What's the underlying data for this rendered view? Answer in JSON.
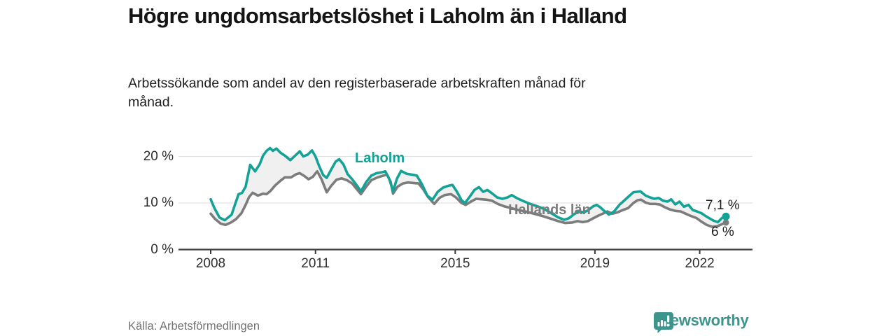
{
  "footer": {
    "source": "Källa: Arbetsförmedlingen",
    "brand": "Newsworthy",
    "brand_color": "#3c948d"
  },
  "chart_data": {
    "type": "line",
    "title": "Högre ungdomsarbetslöshet i Laholm än i Halland",
    "subtitle": "Arbetssökande som andel av den registerbaserade arbetskraften månad för månad.",
    "grid": true,
    "legend": "inline-labels",
    "colors": {
      "grid": "#e2e2e2",
      "axis": "#3d3d3d",
      "fill_between": "#f0f0f0",
      "tick_text": "#2e2e2e"
    },
    "x_axis": {
      "range": [
        2007.9,
        2023.1
      ],
      "ticks": [
        2008,
        2011,
        2015,
        2019,
        2022
      ],
      "labels": [
        "2008",
        "2011",
        "2015",
        "2019",
        "2022"
      ]
    },
    "y_axis": {
      "unit": "%",
      "range": [
        0,
        22
      ],
      "ticks": [
        0,
        10,
        20
      ],
      "labels": [
        "0 %",
        "10 %",
        "20 %"
      ]
    },
    "series": [
      {
        "name": "Laholm",
        "color": "#14a296",
        "end_label": "7,1 %",
        "end_value": 7.1,
        "points": [
          [
            2008.0,
            10.8
          ],
          [
            2008.1,
            9.0
          ],
          [
            2008.25,
            6.9
          ],
          [
            2008.4,
            6.3
          ],
          [
            2008.5,
            6.9
          ],
          [
            2008.6,
            7.5
          ],
          [
            2008.72,
            10.2
          ],
          [
            2008.8,
            11.9
          ],
          [
            2008.9,
            12.2
          ],
          [
            2009.0,
            13.5
          ],
          [
            2009.13,
            18.2
          ],
          [
            2009.27,
            16.8
          ],
          [
            2009.4,
            18.3
          ],
          [
            2009.5,
            20.2
          ],
          [
            2009.6,
            21.2
          ],
          [
            2009.7,
            21.8
          ],
          [
            2009.78,
            21.2
          ],
          [
            2009.88,
            21.7
          ],
          [
            2010.0,
            20.8
          ],
          [
            2010.12,
            20.2
          ],
          [
            2010.28,
            19.2
          ],
          [
            2010.42,
            20.2
          ],
          [
            2010.55,
            21.1
          ],
          [
            2010.65,
            20.0
          ],
          [
            2010.78,
            20.4
          ],
          [
            2010.9,
            21.3
          ],
          [
            2011.0,
            20.0
          ],
          [
            2011.1,
            18.0
          ],
          [
            2011.22,
            16.0
          ],
          [
            2011.32,
            15.4
          ],
          [
            2011.45,
            17.2
          ],
          [
            2011.58,
            18.9
          ],
          [
            2011.68,
            19.4
          ],
          [
            2011.8,
            18.3
          ],
          [
            2011.92,
            16.2
          ],
          [
            2012.05,
            15.1
          ],
          [
            2012.18,
            13.8
          ],
          [
            2012.3,
            12.5
          ],
          [
            2012.45,
            14.5
          ],
          [
            2012.6,
            15.9
          ],
          [
            2012.75,
            16.4
          ],
          [
            2012.9,
            16.6
          ],
          [
            2013.0,
            16.8
          ],
          [
            2013.12,
            15.0
          ],
          [
            2013.22,
            12.5
          ],
          [
            2013.33,
            15.2
          ],
          [
            2013.45,
            16.9
          ],
          [
            2013.6,
            16.3
          ],
          [
            2013.75,
            16.1
          ],
          [
            2013.9,
            15.9
          ],
          [
            2014.05,
            14.0
          ],
          [
            2014.2,
            11.6
          ],
          [
            2014.35,
            10.7
          ],
          [
            2014.5,
            12.4
          ],
          [
            2014.65,
            13.3
          ],
          [
            2014.8,
            13.7
          ],
          [
            2014.92,
            13.9
          ],
          [
            2015.05,
            12.4
          ],
          [
            2015.18,
            10.6
          ],
          [
            2015.28,
            10.0
          ],
          [
            2015.42,
            11.4
          ],
          [
            2015.55,
            12.8
          ],
          [
            2015.68,
            13.4
          ],
          [
            2015.8,
            12.4
          ],
          [
            2015.92,
            12.8
          ],
          [
            2016.05,
            12.1
          ],
          [
            2016.2,
            11.2
          ],
          [
            2016.35,
            10.9
          ],
          [
            2016.5,
            11.2
          ],
          [
            2016.62,
            11.7
          ],
          [
            2016.78,
            11.0
          ],
          [
            2016.95,
            10.4
          ],
          [
            2017.15,
            9.8
          ],
          [
            2017.35,
            9.3
          ],
          [
            2017.55,
            8.7
          ],
          [
            2017.75,
            7.8
          ],
          [
            2017.95,
            6.9
          ],
          [
            2018.12,
            6.4
          ],
          [
            2018.25,
            6.7
          ],
          [
            2018.4,
            7.6
          ],
          [
            2018.55,
            8.2
          ],
          [
            2018.68,
            8.0
          ],
          [
            2018.8,
            8.4
          ],
          [
            2018.95,
            9.3
          ],
          [
            2019.05,
            9.6
          ],
          [
            2019.15,
            9.1
          ],
          [
            2019.25,
            8.4
          ],
          [
            2019.4,
            7.5
          ],
          [
            2019.55,
            8.2
          ],
          [
            2019.7,
            9.6
          ],
          [
            2019.85,
            10.6
          ],
          [
            2019.98,
            11.5
          ],
          [
            2020.1,
            12.3
          ],
          [
            2020.3,
            12.5
          ],
          [
            2020.45,
            11.6
          ],
          [
            2020.58,
            11.2
          ],
          [
            2020.7,
            10.9
          ],
          [
            2020.82,
            11.1
          ],
          [
            2020.95,
            10.5
          ],
          [
            2021.08,
            10.3
          ],
          [
            2021.18,
            10.8
          ],
          [
            2021.3,
            9.7
          ],
          [
            2021.42,
            10.3
          ],
          [
            2021.55,
            9.2
          ],
          [
            2021.68,
            9.6
          ],
          [
            2021.8,
            8.5
          ],
          [
            2021.92,
            8.2
          ],
          [
            2022.05,
            7.8
          ],
          [
            2022.15,
            7.3
          ],
          [
            2022.28,
            6.7
          ],
          [
            2022.4,
            6.2
          ],
          [
            2022.52,
            5.9
          ],
          [
            2022.64,
            6.8
          ],
          [
            2022.75,
            7.1
          ]
        ]
      },
      {
        "name": "Hallands län",
        "color": "#7c7c7c",
        "end_label": "6 %",
        "end_value": 5.8,
        "points": [
          [
            2008.0,
            7.7
          ],
          [
            2008.12,
            6.6
          ],
          [
            2008.28,
            5.6
          ],
          [
            2008.42,
            5.3
          ],
          [
            2008.58,
            5.8
          ],
          [
            2008.72,
            6.5
          ],
          [
            2008.88,
            7.8
          ],
          [
            2009.0,
            9.6
          ],
          [
            2009.1,
            11.3
          ],
          [
            2009.2,
            12.2
          ],
          [
            2009.35,
            11.6
          ],
          [
            2009.5,
            12.0
          ],
          [
            2009.6,
            11.9
          ],
          [
            2009.7,
            12.5
          ],
          [
            2009.85,
            13.8
          ],
          [
            2010.0,
            14.8
          ],
          [
            2010.12,
            15.5
          ],
          [
            2010.3,
            15.5
          ],
          [
            2010.45,
            16.2
          ],
          [
            2010.55,
            16.4
          ],
          [
            2010.68,
            15.8
          ],
          [
            2010.8,
            15.1
          ],
          [
            2010.92,
            15.6
          ],
          [
            2011.05,
            16.8
          ],
          [
            2011.18,
            15.0
          ],
          [
            2011.32,
            12.3
          ],
          [
            2011.45,
            13.7
          ],
          [
            2011.6,
            15.0
          ],
          [
            2011.75,
            15.3
          ],
          [
            2011.9,
            14.9
          ],
          [
            2012.05,
            14.2
          ],
          [
            2012.18,
            13.0
          ],
          [
            2012.3,
            11.9
          ],
          [
            2012.45,
            13.5
          ],
          [
            2012.6,
            14.9
          ],
          [
            2012.78,
            15.5
          ],
          [
            2012.95,
            15.9
          ],
          [
            2013.05,
            16.1
          ],
          [
            2013.15,
            14.6
          ],
          [
            2013.22,
            12.0
          ],
          [
            2013.35,
            13.5
          ],
          [
            2013.5,
            14.2
          ],
          [
            2013.65,
            14.4
          ],
          [
            2013.8,
            14.3
          ],
          [
            2013.95,
            14.2
          ],
          [
            2014.08,
            13.0
          ],
          [
            2014.22,
            11.3
          ],
          [
            2014.4,
            9.8
          ],
          [
            2014.55,
            11.1
          ],
          [
            2014.7,
            11.7
          ],
          [
            2014.88,
            11.9
          ],
          [
            2015.02,
            11.2
          ],
          [
            2015.18,
            10.0
          ],
          [
            2015.3,
            9.6
          ],
          [
            2015.45,
            10.3
          ],
          [
            2015.6,
            10.9
          ],
          [
            2015.75,
            10.8
          ],
          [
            2015.9,
            10.7
          ],
          [
            2016.05,
            10.5
          ],
          [
            2016.22,
            9.8
          ],
          [
            2016.4,
            9.3
          ],
          [
            2016.6,
            8.9
          ],
          [
            2016.8,
            8.5
          ],
          [
            2017.0,
            8.2
          ],
          [
            2017.25,
            7.7
          ],
          [
            2017.5,
            7.2
          ],
          [
            2017.75,
            6.6
          ],
          [
            2017.95,
            6.1
          ],
          [
            2018.15,
            5.7
          ],
          [
            2018.35,
            5.8
          ],
          [
            2018.5,
            6.1
          ],
          [
            2018.65,
            5.9
          ],
          [
            2018.8,
            6.1
          ],
          [
            2018.95,
            6.7
          ],
          [
            2019.1,
            7.3
          ],
          [
            2019.25,
            7.8
          ],
          [
            2019.35,
            8.2
          ],
          [
            2019.5,
            7.7
          ],
          [
            2019.65,
            8.0
          ],
          [
            2019.8,
            8.5
          ],
          [
            2019.95,
            8.9
          ],
          [
            2020.1,
            10.0
          ],
          [
            2020.22,
            10.6
          ],
          [
            2020.32,
            10.7
          ],
          [
            2020.45,
            10.1
          ],
          [
            2020.58,
            9.8
          ],
          [
            2020.72,
            9.8
          ],
          [
            2020.85,
            9.7
          ],
          [
            2021.0,
            9.1
          ],
          [
            2021.15,
            8.6
          ],
          [
            2021.3,
            8.3
          ],
          [
            2021.45,
            8.2
          ],
          [
            2021.6,
            7.7
          ],
          [
            2021.75,
            7.2
          ],
          [
            2021.9,
            6.8
          ],
          [
            2022.05,
            6.0
          ],
          [
            2022.2,
            5.3
          ],
          [
            2022.35,
            4.9
          ],
          [
            2022.5,
            5.0
          ],
          [
            2022.62,
            5.4
          ],
          [
            2022.75,
            5.8
          ]
        ]
      }
    ]
  }
}
